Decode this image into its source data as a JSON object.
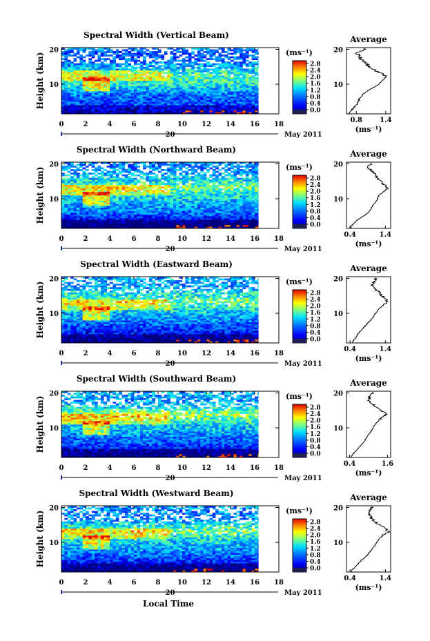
{
  "figure": {
    "colorbar_unit": "(ms⁻¹)",
    "colorbar_ticks": [
      "2.8",
      "2.4",
      "2.0",
      "1.6",
      "1.2",
      "0.8",
      "0.4",
      "0.0"
    ],
    "ylabel": "Height (km)",
    "date_label": "20",
    "month_label": "May 2011",
    "xlabel": "Local Time",
    "avg_title": "Average",
    "avg_unit": "(ms⁻¹)"
  },
  "chart_data": [
    {
      "type": "heatmap",
      "title": "Spectral Width (Vertical Beam)",
      "ylabel": "Height (km)",
      "x_ticks": [
        0,
        2,
        4,
        6,
        8,
        10,
        12,
        14,
        16,
        18
      ],
      "xlim": [
        0,
        18
      ],
      "data_xlim": [
        0,
        16.3
      ],
      "y_ticks": [
        10,
        20
      ],
      "ylim": [
        1.5,
        20.5
      ],
      "colorbar": {
        "ticks": [
          0.0,
          0.4,
          0.8,
          1.2,
          1.6,
          2.0,
          2.4,
          2.8
        ],
        "range": [
          0,
          3.0
        ]
      },
      "profile": {
        "title": "Average",
        "xlabel": "(ms⁻¹)",
        "x_ticks": [
          0.8,
          1.4
        ],
        "xlim": [
          0.6,
          1.5
        ],
        "height": [
          2,
          3,
          4,
          5,
          6,
          7,
          8,
          9,
          10,
          11,
          12,
          13,
          14,
          15,
          16,
          17,
          18,
          19,
          20
        ],
        "values": [
          0.66,
          0.73,
          0.8,
          0.84,
          0.87,
          0.93,
          1.02,
          1.14,
          1.26,
          1.33,
          1.4,
          1.34,
          1.18,
          1.06,
          1.0,
          0.92,
          0.85,
          0.8,
          0.96
        ]
      }
    },
    {
      "type": "heatmap",
      "title": "Spectral Width (Northward Beam)",
      "ylabel": "Height (km)",
      "x_ticks": [
        0,
        2,
        4,
        6,
        8,
        10,
        12,
        14,
        16,
        18
      ],
      "xlim": [
        0,
        18
      ],
      "data_xlim": [
        0,
        16.3
      ],
      "y_ticks": [
        10,
        20
      ],
      "ylim": [
        1.5,
        20.5
      ],
      "colorbar": {
        "ticks": [
          0.0,
          0.4,
          0.8,
          1.2,
          1.6,
          2.0,
          2.4,
          2.8
        ],
        "range": [
          0,
          3.0
        ]
      },
      "profile": {
        "title": "Average",
        "xlabel": "(ms⁻¹)",
        "x_ticks": [
          0.4,
          1.4
        ],
        "xlim": [
          0.3,
          1.55
        ],
        "height": [
          2,
          3,
          4,
          5,
          6,
          7,
          8,
          9,
          10,
          11,
          12,
          13,
          14,
          15,
          16,
          17,
          18,
          19,
          20
        ],
        "values": [
          0.42,
          0.52,
          0.62,
          0.78,
          0.92,
          0.98,
          1.04,
          1.12,
          1.18,
          1.22,
          1.34,
          1.46,
          1.38,
          1.25,
          1.18,
          1.1,
          1.02,
          0.9,
          0.98
        ]
      }
    },
    {
      "type": "heatmap",
      "title": "Spectral Width (Eastward Beam)",
      "ylabel": "Height (km)",
      "x_ticks": [
        0,
        2,
        4,
        6,
        8,
        10,
        12,
        14,
        16,
        18
      ],
      "xlim": [
        0,
        18
      ],
      "data_xlim": [
        0,
        16.3
      ],
      "y_ticks": [
        10,
        20
      ],
      "ylim": [
        1.5,
        20.5
      ],
      "colorbar": {
        "ticks": [
          0.0,
          0.4,
          0.8,
          1.2,
          1.6,
          2.0,
          2.4,
          2.8
        ],
        "range": [
          0,
          3.0
        ]
      },
      "profile": {
        "title": "Average",
        "xlabel": "(ms⁻¹)",
        "x_ticks": [
          0.4,
          1.4
        ],
        "xlim": [
          0.3,
          1.55
        ],
        "height": [
          2,
          3,
          4,
          5,
          6,
          7,
          8,
          9,
          10,
          11,
          12,
          13,
          14,
          15,
          16,
          17,
          18,
          19,
          20
        ],
        "values": [
          0.48,
          0.56,
          0.62,
          0.7,
          0.8,
          0.88,
          0.98,
          1.06,
          1.12,
          1.2,
          1.3,
          1.45,
          1.42,
          1.3,
          1.24,
          1.1,
          1.02,
          1.06,
          1.14
        ]
      }
    },
    {
      "type": "heatmap",
      "title": "Spectral Width (Southward Beam)",
      "ylabel": "Height (km)",
      "x_ticks": [
        0,
        2,
        4,
        6,
        8,
        10,
        12,
        14,
        16,
        18
      ],
      "xlim": [
        0,
        18
      ],
      "data_xlim": [
        0,
        16.3
      ],
      "y_ticks": [
        10,
        20
      ],
      "ylim": [
        1.5,
        20.5
      ],
      "colorbar": {
        "ticks": [
          0.0,
          0.4,
          0.8,
          1.2,
          1.6,
          2.0,
          2.4,
          2.8
        ],
        "range": [
          0,
          3.0
        ]
      },
      "profile": {
        "title": "Average",
        "xlabel": "(ms⁻¹)",
        "x_ticks": [
          0.4,
          1.6
        ],
        "xlim": [
          0.3,
          1.7
        ],
        "height": [
          2,
          3,
          4,
          5,
          6,
          7,
          8,
          9,
          10,
          11,
          12,
          13,
          14,
          15,
          16,
          17,
          18,
          19,
          20
        ],
        "values": [
          0.46,
          0.56,
          0.66,
          0.76,
          0.86,
          0.92,
          1.0,
          1.08,
          1.14,
          1.2,
          1.32,
          1.44,
          1.56,
          1.4,
          1.22,
          1.1,
          1.0,
          1.04,
          1.12
        ]
      }
    },
    {
      "type": "heatmap",
      "title": "Spectral Width (Westward Beam)",
      "ylabel": "Height (km)",
      "x_ticks": [
        0,
        2,
        4,
        6,
        8,
        10,
        12,
        14,
        16,
        18
      ],
      "xlim": [
        0,
        18
      ],
      "data_xlim": [
        0,
        16.3
      ],
      "y_ticks": [
        10,
        20
      ],
      "ylim": [
        1.5,
        20.5
      ],
      "colorbar": {
        "ticks": [
          0.0,
          0.4,
          0.8,
          1.2,
          1.6,
          2.0,
          2.4,
          2.8
        ],
        "range": [
          0,
          3.0
        ]
      },
      "profile": {
        "title": "Average",
        "xlabel": "(ms⁻¹)",
        "x_ticks": [
          0.4,
          1.4
        ],
        "xlim": [
          0.3,
          1.55
        ],
        "height": [
          2,
          3,
          4,
          5,
          6,
          7,
          8,
          9,
          10,
          11,
          12,
          13,
          14,
          15,
          16,
          17,
          18,
          19,
          20
        ],
        "values": [
          0.44,
          0.56,
          0.64,
          0.74,
          0.86,
          0.94,
          1.02,
          1.1,
          1.16,
          1.22,
          1.34,
          1.48,
          1.4,
          1.24,
          1.1,
          1.0,
          0.94,
          0.96,
          1.02
        ]
      }
    }
  ]
}
